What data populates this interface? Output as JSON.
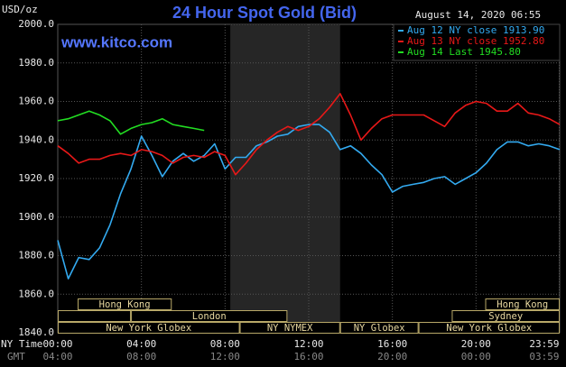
{
  "chart_data": {
    "type": "line",
    "title": "24 Hour Spot Gold (Bid)",
    "timestamp": "August 14, 2020 06:55",
    "watermark": "www.kitco.com",
    "y_axis_label": "USD/oz",
    "x_axis_label": "NY Time",
    "x2_axis_label": "GMT",
    "x": [
      0,
      0.5,
      1,
      1.5,
      2,
      2.5,
      3,
      3.5,
      4,
      4.5,
      5,
      5.5,
      6,
      6.5,
      7,
      7.5,
      8,
      8.5,
      9,
      9.5,
      10,
      10.5,
      11,
      11.5,
      12,
      12.5,
      13,
      13.5,
      14,
      14.5,
      15,
      15.5,
      16,
      16.5,
      17,
      17.5,
      18,
      18.5,
      19,
      19.5,
      20,
      20.5,
      21,
      21.5,
      22,
      22.5,
      23,
      23.5,
      24
    ],
    "series": [
      {
        "name": "Aug 12 NY close 1913.90",
        "color": "#33aaf0",
        "values": [
          1888,
          1868,
          1879,
          1878,
          1884,
          1896,
          1912,
          1925,
          1942,
          1932,
          1921,
          1929,
          1933,
          1929,
          1932,
          1938,
          1925,
          1931,
          1931,
          1937,
          1939,
          1942,
          1943,
          1947,
          1948,
          1948,
          1944,
          1935,
          1937,
          1933,
          1927,
          1922,
          1913,
          1916,
          1917,
          1918,
          1920,
          1921,
          1917,
          1920,
          1923,
          1928,
          1935,
          1939,
          1939,
          1937,
          1938,
          1937,
          1935
        ]
      },
      {
        "name": "Aug 13 NY close 1952.80",
        "color": "#e81818",
        "values": [
          1937,
          1933,
          1928,
          1930,
          1930,
          1932,
          1933,
          1932,
          1935,
          1934,
          1932,
          1928,
          1931,
          1932,
          1931,
          1934,
          1932,
          1922,
          1928,
          1935,
          1940,
          1944,
          1947,
          1945,
          1947,
          1951,
          1957,
          1964,
          1953,
          1940,
          1946,
          1951,
          1953,
          1953,
          1953,
          1953,
          1950,
          1947,
          1954,
          1958,
          1960,
          1959,
          1955,
          1955,
          1959,
          1954,
          1953,
          1951,
          1948
        ]
      },
      {
        "name": "Aug 14 Last 1945.80",
        "color": "#22dd22",
        "values": [
          1950,
          1951,
          1953,
          1955,
          1953,
          1950,
          1943,
          1946,
          1948,
          1949,
          1951,
          1948,
          1947,
          1946,
          1945,
          null,
          null,
          null,
          null,
          null,
          null,
          null,
          null,
          null,
          null,
          null,
          null,
          null,
          null,
          null,
          null,
          null,
          null,
          null,
          null,
          null,
          null,
          null,
          null,
          null,
          null,
          null,
          null,
          null,
          null,
          null,
          null,
          null,
          null
        ]
      }
    ],
    "xlim": [
      0,
      24
    ],
    "xticks": [
      {
        "value": 0,
        "label": "00:00"
      },
      {
        "value": 4,
        "label": "04:00"
      },
      {
        "value": 8,
        "label": "08:00"
      },
      {
        "value": 12,
        "label": "12:00"
      },
      {
        "value": 16,
        "label": "16:00"
      },
      {
        "value": 20,
        "label": "20:00"
      },
      {
        "value": 23.98,
        "label": "23:59"
      }
    ],
    "x2_tick_labels": [
      "04:00",
      "08:00",
      "12:00",
      "16:00",
      "20:00",
      "00:00",
      "03:59"
    ],
    "ylim": [
      1840,
      2000
    ],
    "yticks": [
      {
        "value": 1840,
        "label": "1840.0"
      },
      {
        "value": 1860,
        "label": "1860.0"
      },
      {
        "value": 1880,
        "label": "1880.0"
      },
      {
        "value": 1900,
        "label": "1900.0"
      },
      {
        "value": 1920,
        "label": "1920.0"
      },
      {
        "value": 1940,
        "label": "1940.0"
      },
      {
        "value": 1960,
        "label": "1960.0"
      },
      {
        "value": 1980,
        "label": "1980.0"
      },
      {
        "value": 2000,
        "label": "2000.0"
      }
    ],
    "grid": true,
    "highlight": [
      8.25,
      13.5
    ],
    "sessions": [
      [
        {
          "name": "Hong Kong",
          "start": 0.95,
          "end": 5.45
        },
        {
          "name": "Hong Kong",
          "start": 20.44,
          "end": 24
        }
      ],
      [
        {
          "name": null,
          "start": 0,
          "end": 3.5
        },
        {
          "name": "London",
          "start": 3.5,
          "end": 10.98
        },
        {
          "name": "Sydney",
          "start": 18.84,
          "end": 24
        }
      ],
      [
        {
          "name": "New York Globex",
          "start": 0,
          "end": 8.7
        },
        {
          "name": "NY NYMEX",
          "start": 8.7,
          "end": 13.5
        },
        {
          "name": "NY Globex",
          "start": 13.5,
          "end": 17.25
        },
        {
          "name": "New York Globex",
          "start": 17.25,
          "end": 24
        }
      ]
    ]
  }
}
